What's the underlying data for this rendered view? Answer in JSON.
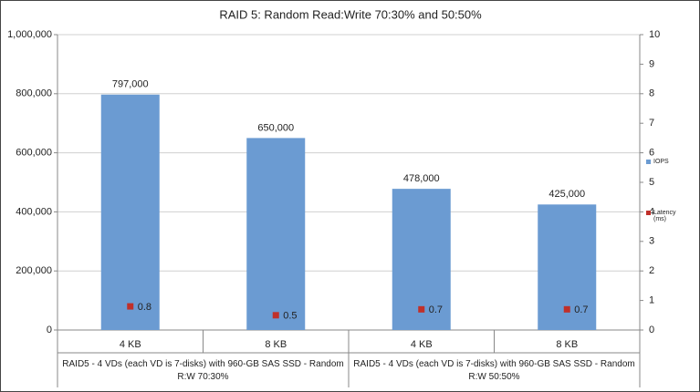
{
  "chart_data": {
    "type": "bar",
    "title": "RAID 5: Random Read:Write 70:30% and 50:50%",
    "categories": [
      "4 KB",
      "8 KB",
      "4 KB",
      "8 KB"
    ],
    "groups": [
      "RAID5 - 4 VDs (each VD is 7-disks) with 960-GB SAS SSD - Random R:W 70:30%",
      "RAID5 - 4 VDs (each VD is 7-disks) with 960-GB SAS SSD - Random R:W 50:50%"
    ],
    "series": [
      {
        "name": "IOPS",
        "type": "bar",
        "color": "#6b9bd2",
        "values": [
          797000,
          650000,
          478000,
          425000
        ],
        "value_labels": [
          "797,000",
          "650,000",
          "478,000",
          "425,000"
        ]
      },
      {
        "name": "Latency (ms)",
        "type": "scatter",
        "color": "#c0302a",
        "axis": "y2",
        "values": [
          0.8,
          0.5,
          0.7,
          0.7
        ]
      }
    ],
    "ylim": [
      0,
      1000000
    ],
    "yticks": [
      {
        "value": 0,
        "label": "0"
      },
      {
        "value": 200000,
        "label": "200,000"
      },
      {
        "value": 400000,
        "label": "400,000"
      },
      {
        "value": 600000,
        "label": "600,000"
      },
      {
        "value": 800000,
        "label": "800,000"
      },
      {
        "value": 1000000,
        "label": "1,000,000"
      }
    ],
    "y2lim": [
      0,
      10
    ],
    "y2ticks": [
      0,
      1,
      2,
      3,
      4,
      5,
      6,
      7,
      8,
      9,
      10
    ],
    "grid": true
  }
}
